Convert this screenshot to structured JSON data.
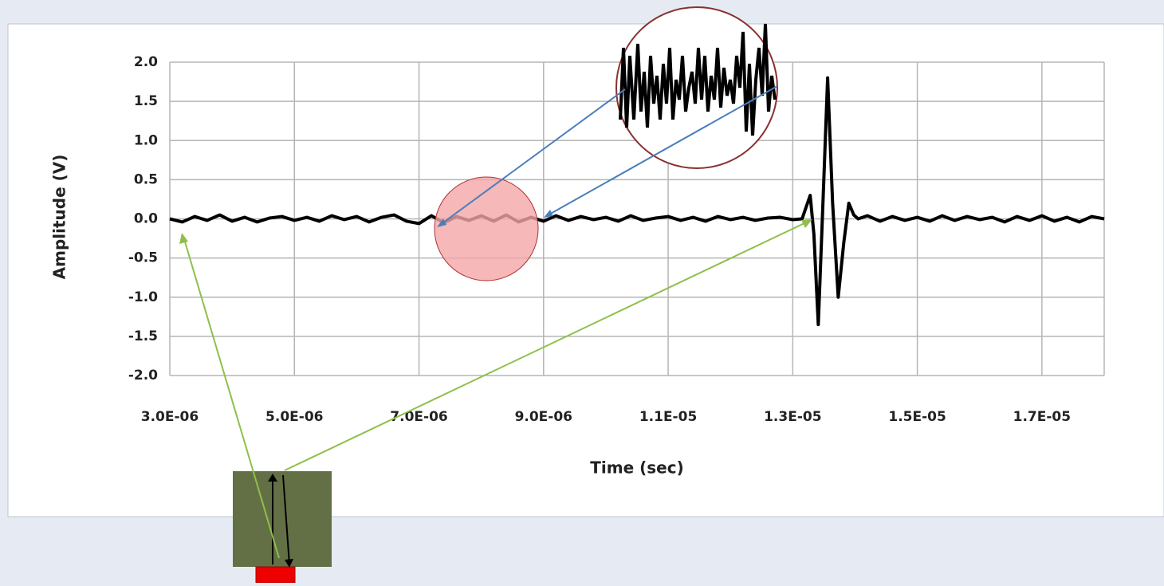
{
  "chart_data": {
    "type": "line",
    "xlabel": "Time (sec)",
    "ylabel": "Amplitude (V)",
    "color": "#000000",
    "grid": true,
    "xlim": [
      3e-06,
      1.8e-05
    ],
    "ylim": [
      -2.0,
      2.0
    ],
    "xticks": [
      {
        "value": 3e-06,
        "label": "3.0E-06"
      },
      {
        "value": 5e-06,
        "label": "5.0E-06"
      },
      {
        "value": 7e-06,
        "label": "7.0E-06"
      },
      {
        "value": 9e-06,
        "label": "9.0E-06"
      },
      {
        "value": 1.1e-05,
        "label": "1.1E-05"
      },
      {
        "value": 1.3e-05,
        "label": "1.3E-05"
      },
      {
        "value": 1.5e-05,
        "label": "1.5E-05"
      },
      {
        "value": 1.7e-05,
        "label": "1.7E-05"
      }
    ],
    "yticks": [
      {
        "value": 2.0,
        "label": "2.0"
      },
      {
        "value": 1.5,
        "label": "1.5"
      },
      {
        "value": 1.0,
        "label": "1.0"
      },
      {
        "value": 0.5,
        "label": "0.5"
      },
      {
        "value": 0.0,
        "label": "0.0"
      },
      {
        "value": -0.5,
        "label": "-0.5"
      },
      {
        "value": -1.0,
        "label": "-1.0"
      },
      {
        "value": -1.5,
        "label": "-1.5"
      },
      {
        "value": -2.0,
        "label": "-2.0"
      }
    ],
    "x": [
      3e-06,
      3.2e-06,
      3.4e-06,
      3.6e-06,
      3.8e-06,
      4e-06,
      4.2e-06,
      4.4e-06,
      4.6e-06,
      4.8e-06,
      5e-06,
      5.2e-06,
      5.4e-06,
      5.6e-06,
      5.8e-06,
      6e-06,
      6.2e-06,
      6.4e-06,
      6.6e-06,
      6.8e-06,
      7e-06,
      7.2e-06,
      7.4e-06,
      7.6e-06,
      7.8e-06,
      8e-06,
      8.2e-06,
      8.4e-06,
      8.6e-06,
      8.8e-06,
      9e-06,
      9.2e-06,
      9.4e-06,
      9.6e-06,
      9.8e-06,
      1e-05,
      1.02e-05,
      1.04e-05,
      1.06e-05,
      1.08e-05,
      1.1e-05,
      1.12e-05,
      1.14e-05,
      1.16e-05,
      1.18e-05,
      1.2e-05,
      1.22e-05,
      1.24e-05,
      1.26e-05,
      1.28e-05,
      1.3e-05,
      1.315e-05,
      1.328e-05,
      1.334e-05,
      1.341e-05,
      1.348e-05,
      1.356e-05,
      1.364e-05,
      1.373e-05,
      1.382e-05,
      1.39e-05,
      1.398e-05,
      1.405e-05,
      1.42e-05,
      1.44e-05,
      1.46e-05,
      1.48e-05,
      1.5e-05,
      1.52e-05,
      1.54e-05,
      1.56e-05,
      1.58e-05,
      1.6e-05,
      1.62e-05,
      1.64e-05,
      1.66e-05,
      1.68e-05,
      1.7e-05,
      1.72e-05,
      1.74e-05,
      1.76e-05,
      1.78e-05,
      1.8e-05
    ],
    "values": [
      0.0,
      -0.04,
      0.03,
      -0.02,
      0.05,
      -0.03,
      0.02,
      -0.04,
      0.01,
      0.03,
      -0.02,
      0.02,
      -0.03,
      0.04,
      -0.01,
      0.03,
      -0.04,
      0.02,
      0.05,
      -0.03,
      -0.06,
      0.04,
      -0.05,
      0.03,
      -0.02,
      0.04,
      -0.03,
      0.05,
      -0.04,
      0.02,
      -0.03,
      0.04,
      -0.02,
      0.03,
      -0.01,
      0.02,
      -0.03,
      0.04,
      -0.02,
      0.01,
      0.03,
      -0.02,
      0.02,
      -0.03,
      0.03,
      -0.01,
      0.02,
      -0.02,
      0.01,
      0.02,
      -0.01,
      0.0,
      0.3,
      -0.2,
      -1.35,
      0.1,
      1.8,
      0.2,
      -1.0,
      -0.3,
      0.2,
      0.05,
      0.0,
      0.04,
      -0.03,
      0.03,
      -0.02,
      0.02,
      -0.03,
      0.04,
      -0.02,
      0.03,
      -0.01,
      0.02,
      -0.04,
      0.03,
      -0.02,
      0.04,
      -0.03,
      0.02,
      -0.04,
      0.03,
      0.0
    ]
  }
}
